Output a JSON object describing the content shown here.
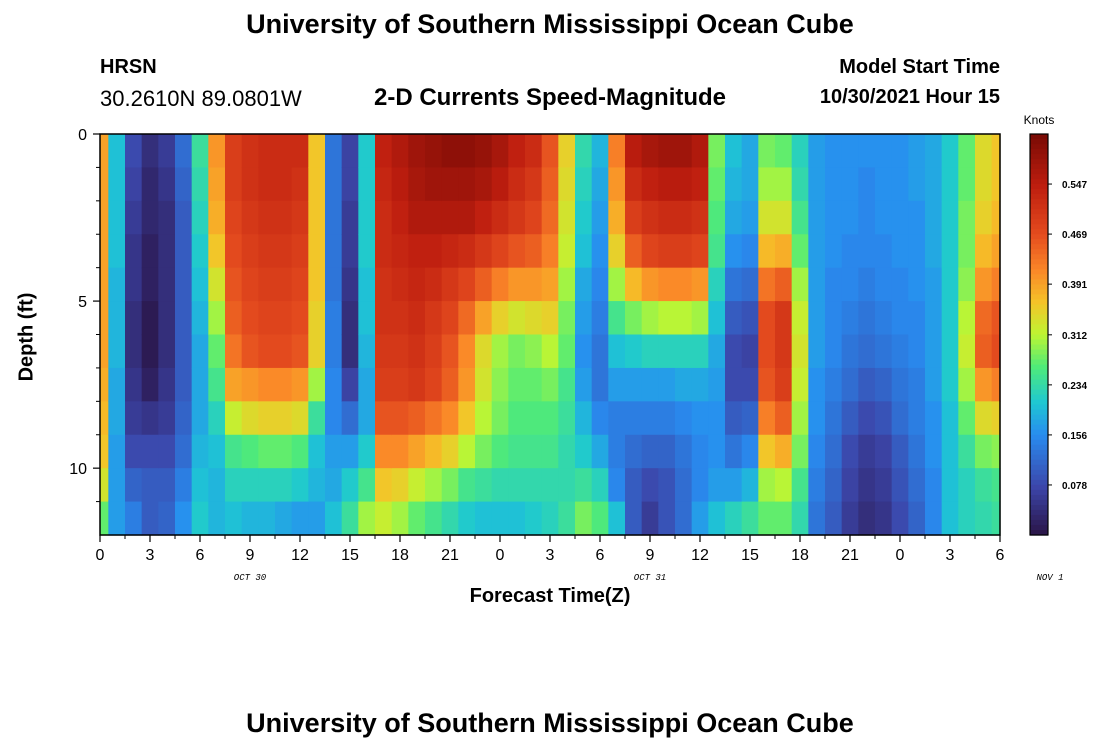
{
  "header": {
    "title": "University of Southern Mississippi Ocean Cube",
    "station": "HRSN",
    "coordinates": "30.2610N  89.0801W",
    "subtitle": "2-D Currents Speed-Magnitude",
    "model_start_label": "Model Start Time",
    "model_start_value": "10/30/2021 Hour 15"
  },
  "footer": {
    "title": "University of Southern Mississippi Ocean Cube"
  },
  "chart_data": {
    "type": "heatmap",
    "xlabel": "Forecast Time(Z)",
    "ylabel": "Depth (ft)",
    "colorbar_label": "Knots",
    "x_tick_labels": [
      "0",
      "3",
      "6",
      "9",
      "12",
      "15",
      "18",
      "21",
      "0",
      "3",
      "6",
      "9",
      "12",
      "15",
      "18",
      "21",
      "0",
      "3",
      "6"
    ],
    "date_labels": [
      {
        "text": "OCT 30",
        "hour": 9
      },
      {
        "text": "OCT 31",
        "hour": 33
      },
      {
        "text": "NOV 1",
        "hour": 57
      }
    ],
    "xlim_hours": [
      0,
      54
    ],
    "y_tick_labels": [
      "0",
      "5",
      "10"
    ],
    "ylim_ft": [
      0,
      12
    ],
    "colorbar_ticks": [
      0.078,
      0.156,
      0.234,
      0.312,
      0.391,
      0.469,
      0.547
    ],
    "colorbar_range": [
      0.0,
      0.625
    ],
    "depth_levels_ft": [
      0.5,
      1.5,
      2.5,
      3.5,
      4.5,
      5.5,
      6.5,
      7.5,
      8.5,
      9.5,
      10.5,
      11.5
    ],
    "speed_knots_by_hour": [
      {
        "hour": 0,
        "profile": [
          0.39,
          0.39,
          0.39,
          0.39,
          0.39,
          0.39,
          0.39,
          0.38,
          0.37,
          0.36,
          0.33,
          0.27
        ]
      },
      {
        "hour": 1,
        "profile": [
          0.2,
          0.2,
          0.2,
          0.2,
          0.19,
          0.19,
          0.19,
          0.18,
          0.18,
          0.17,
          0.17,
          0.17
        ]
      },
      {
        "hour": 2,
        "profile": [
          0.08,
          0.07,
          0.06,
          0.05,
          0.05,
          0.04,
          0.04,
          0.05,
          0.06,
          0.08,
          0.11,
          0.14
        ]
      },
      {
        "hour": 3,
        "profile": [
          0.04,
          0.03,
          0.03,
          0.02,
          0.02,
          0.01,
          0.01,
          0.02,
          0.05,
          0.08,
          0.1,
          0.1
        ]
      },
      {
        "hour": 4,
        "profile": [
          0.06,
          0.05,
          0.04,
          0.04,
          0.04,
          0.04,
          0.04,
          0.05,
          0.06,
          0.08,
          0.1,
          0.11
        ]
      },
      {
        "hour": 5,
        "profile": [
          0.12,
          0.11,
          0.1,
          0.1,
          0.1,
          0.1,
          0.1,
          0.1,
          0.11,
          0.12,
          0.14,
          0.16
        ]
      },
      {
        "hour": 6,
        "profile": [
          0.24,
          0.23,
          0.22,
          0.21,
          0.2,
          0.19,
          0.18,
          0.18,
          0.18,
          0.19,
          0.2,
          0.21
        ]
      },
      {
        "hour": 7,
        "profile": [
          0.4,
          0.39,
          0.38,
          0.36,
          0.33,
          0.3,
          0.27,
          0.25,
          0.22,
          0.2,
          0.19,
          0.19
        ]
      },
      {
        "hour": 8,
        "profile": [
          0.49,
          0.49,
          0.48,
          0.47,
          0.46,
          0.45,
          0.43,
          0.39,
          0.32,
          0.25,
          0.22,
          0.2
        ]
      },
      {
        "hour": 9,
        "profile": [
          0.51,
          0.51,
          0.5,
          0.49,
          0.48,
          0.47,
          0.46,
          0.4,
          0.34,
          0.26,
          0.22,
          0.19
        ]
      },
      {
        "hour": 10,
        "profile": [
          0.52,
          0.52,
          0.51,
          0.5,
          0.49,
          0.48,
          0.47,
          0.41,
          0.35,
          0.27,
          0.22,
          0.19
        ]
      },
      {
        "hour": 11,
        "profile": [
          0.52,
          0.52,
          0.51,
          0.5,
          0.49,
          0.48,
          0.47,
          0.41,
          0.35,
          0.27,
          0.22,
          0.18
        ]
      },
      {
        "hour": 12,
        "profile": [
          0.52,
          0.51,
          0.5,
          0.49,
          0.48,
          0.47,
          0.46,
          0.4,
          0.34,
          0.26,
          0.21,
          0.17
        ]
      },
      {
        "hour": 13,
        "profile": [
          0.36,
          0.36,
          0.36,
          0.36,
          0.36,
          0.35,
          0.35,
          0.3,
          0.24,
          0.2,
          0.19,
          0.17
        ]
      },
      {
        "hour": 14,
        "profile": [
          0.13,
          0.13,
          0.13,
          0.13,
          0.13,
          0.14,
          0.14,
          0.15,
          0.15,
          0.17,
          0.18,
          0.2
        ]
      },
      {
        "hour": 15,
        "profile": [
          0.07,
          0.07,
          0.06,
          0.06,
          0.05,
          0.04,
          0.04,
          0.07,
          0.12,
          0.17,
          0.21,
          0.24
        ]
      },
      {
        "hour": 16,
        "profile": [
          0.21,
          0.21,
          0.21,
          0.21,
          0.2,
          0.2,
          0.19,
          0.18,
          0.18,
          0.21,
          0.25,
          0.3
        ]
      },
      {
        "hour": 17,
        "profile": [
          0.54,
          0.53,
          0.52,
          0.52,
          0.51,
          0.51,
          0.5,
          0.49,
          0.46,
          0.41,
          0.36,
          0.32
        ]
      },
      {
        "hour": 18,
        "profile": [
          0.56,
          0.55,
          0.54,
          0.53,
          0.52,
          0.51,
          0.5,
          0.49,
          0.46,
          0.41,
          0.35,
          0.3
        ]
      },
      {
        "hour": 19,
        "profile": [
          0.58,
          0.57,
          0.56,
          0.54,
          0.53,
          0.52,
          0.51,
          0.5,
          0.45,
          0.39,
          0.32,
          0.27
        ]
      },
      {
        "hour": 20,
        "profile": [
          0.59,
          0.58,
          0.56,
          0.54,
          0.52,
          0.5,
          0.49,
          0.48,
          0.43,
          0.37,
          0.3,
          0.25
        ]
      },
      {
        "hour": 21,
        "profile": [
          0.6,
          0.58,
          0.56,
          0.53,
          0.5,
          0.48,
          0.46,
          0.45,
          0.41,
          0.35,
          0.28,
          0.23
        ]
      },
      {
        "hour": 22,
        "profile": [
          0.6,
          0.58,
          0.56,
          0.52,
          0.48,
          0.44,
          0.41,
          0.4,
          0.36,
          0.31,
          0.25,
          0.21
        ]
      },
      {
        "hour": 23,
        "profile": [
          0.59,
          0.57,
          0.54,
          0.5,
          0.45,
          0.39,
          0.34,
          0.33,
          0.31,
          0.28,
          0.24,
          0.2
        ]
      },
      {
        "hour": 24,
        "profile": [
          0.57,
          0.55,
          0.52,
          0.48,
          0.42,
          0.35,
          0.3,
          0.29,
          0.28,
          0.26,
          0.23,
          0.2
        ]
      },
      {
        "hour": 25,
        "profile": [
          0.54,
          0.52,
          0.5,
          0.46,
          0.4,
          0.33,
          0.28,
          0.27,
          0.26,
          0.25,
          0.23,
          0.2
        ]
      },
      {
        "hour": 26,
        "profile": [
          0.52,
          0.5,
          0.48,
          0.45,
          0.4,
          0.34,
          0.29,
          0.27,
          0.26,
          0.25,
          0.23,
          0.21
        ]
      },
      {
        "hour": 27,
        "profile": [
          0.46,
          0.45,
          0.44,
          0.42,
          0.39,
          0.35,
          0.31,
          0.28,
          0.26,
          0.25,
          0.23,
          0.22
        ]
      },
      {
        "hour": 28,
        "profile": [
          0.35,
          0.34,
          0.33,
          0.32,
          0.3,
          0.28,
          0.27,
          0.25,
          0.24,
          0.23,
          0.23,
          0.24
        ]
      },
      {
        "hour": 29,
        "profile": [
          0.23,
          0.22,
          0.21,
          0.2,
          0.18,
          0.17,
          0.16,
          0.17,
          0.19,
          0.21,
          0.24,
          0.28
        ]
      },
      {
        "hour": 30,
        "profile": [
          0.19,
          0.18,
          0.17,
          0.16,
          0.15,
          0.14,
          0.13,
          0.13,
          0.15,
          0.18,
          0.22,
          0.26
        ]
      },
      {
        "hour": 31,
        "profile": [
          0.42,
          0.4,
          0.38,
          0.35,
          0.3,
          0.25,
          0.2,
          0.17,
          0.14,
          0.14,
          0.15,
          0.2
        ]
      },
      {
        "hour": 32,
        "profile": [
          0.55,
          0.52,
          0.49,
          0.45,
          0.37,
          0.28,
          0.21,
          0.17,
          0.14,
          0.12,
          0.1,
          0.1
        ]
      },
      {
        "hour": 33,
        "profile": [
          0.57,
          0.54,
          0.51,
          0.48,
          0.4,
          0.3,
          0.22,
          0.17,
          0.14,
          0.11,
          0.08,
          0.06
        ]
      },
      {
        "hour": 34,
        "profile": [
          0.58,
          0.55,
          0.52,
          0.49,
          0.41,
          0.31,
          0.22,
          0.17,
          0.14,
          0.11,
          0.09,
          0.09
        ]
      },
      {
        "hour": 35,
        "profile": [
          0.58,
          0.55,
          0.52,
          0.49,
          0.41,
          0.31,
          0.22,
          0.18,
          0.15,
          0.13,
          0.12,
          0.12
        ]
      },
      {
        "hour": 36,
        "profile": [
          0.56,
          0.54,
          0.51,
          0.48,
          0.4,
          0.3,
          0.22,
          0.18,
          0.16,
          0.15,
          0.15,
          0.17
        ]
      },
      {
        "hour": 37,
        "profile": [
          0.28,
          0.27,
          0.26,
          0.25,
          0.22,
          0.2,
          0.18,
          0.17,
          0.16,
          0.16,
          0.17,
          0.2
        ]
      },
      {
        "hour": 38,
        "profile": [
          0.2,
          0.19,
          0.18,
          0.16,
          0.13,
          0.1,
          0.08,
          0.08,
          0.1,
          0.13,
          0.17,
          0.22
        ]
      },
      {
        "hour": 39,
        "profile": [
          0.18,
          0.18,
          0.17,
          0.15,
          0.12,
          0.09,
          0.07,
          0.08,
          0.11,
          0.15,
          0.19,
          0.24
        ]
      },
      {
        "hour": 40,
        "profile": [
          0.28,
          0.3,
          0.33,
          0.37,
          0.43,
          0.47,
          0.47,
          0.46,
          0.42,
          0.36,
          0.3,
          0.27
        ]
      },
      {
        "hour": 41,
        "profile": [
          0.27,
          0.3,
          0.33,
          0.38,
          0.45,
          0.5,
          0.5,
          0.49,
          0.45,
          0.38,
          0.31,
          0.27
        ]
      },
      {
        "hour": 42,
        "profile": [
          0.22,
          0.23,
          0.25,
          0.27,
          0.3,
          0.32,
          0.33,
          0.32,
          0.3,
          0.28,
          0.25,
          0.23
        ]
      },
      {
        "hour": 43,
        "profile": [
          0.17,
          0.17,
          0.17,
          0.17,
          0.17,
          0.17,
          0.17,
          0.16,
          0.16,
          0.15,
          0.14,
          0.13
        ]
      },
      {
        "hour": 44,
        "profile": [
          0.16,
          0.16,
          0.16,
          0.16,
          0.15,
          0.15,
          0.15,
          0.14,
          0.13,
          0.12,
          0.11,
          0.1
        ]
      },
      {
        "hour": 45,
        "profile": [
          0.16,
          0.16,
          0.16,
          0.15,
          0.15,
          0.14,
          0.13,
          0.12,
          0.1,
          0.08,
          0.07,
          0.06
        ]
      },
      {
        "hour": 46,
        "profile": [
          0.16,
          0.15,
          0.15,
          0.15,
          0.14,
          0.13,
          0.12,
          0.1,
          0.08,
          0.06,
          0.05,
          0.04
        ]
      },
      {
        "hour": 47,
        "profile": [
          0.16,
          0.16,
          0.16,
          0.15,
          0.15,
          0.14,
          0.13,
          0.11,
          0.09,
          0.07,
          0.06,
          0.05
        ]
      },
      {
        "hour": 48,
        "profile": [
          0.16,
          0.16,
          0.16,
          0.16,
          0.15,
          0.15,
          0.14,
          0.13,
          0.12,
          0.1,
          0.09,
          0.08
        ]
      },
      {
        "hour": 49,
        "profile": [
          0.17,
          0.17,
          0.16,
          0.16,
          0.16,
          0.15,
          0.15,
          0.14,
          0.14,
          0.13,
          0.12,
          0.11
        ]
      },
      {
        "hour": 50,
        "profile": [
          0.18,
          0.18,
          0.18,
          0.18,
          0.17,
          0.17,
          0.17,
          0.17,
          0.16,
          0.16,
          0.15,
          0.15
        ]
      },
      {
        "hour": 51,
        "profile": [
          0.21,
          0.21,
          0.21,
          0.21,
          0.21,
          0.21,
          0.21,
          0.21,
          0.2,
          0.2,
          0.2,
          0.2
        ]
      },
      {
        "hour": 52,
        "profile": [
          0.27,
          0.27,
          0.28,
          0.28,
          0.29,
          0.31,
          0.32,
          0.3,
          0.27,
          0.24,
          0.22,
          0.22
        ]
      },
      {
        "hour": 53,
        "profile": [
          0.34,
          0.34,
          0.35,
          0.37,
          0.4,
          0.44,
          0.45,
          0.4,
          0.34,
          0.28,
          0.24,
          0.23
        ]
      },
      {
        "hour": 54,
        "profile": [
          0.36,
          0.36,
          0.37,
          0.39,
          0.42,
          0.46,
          0.47,
          0.42,
          0.35,
          0.29,
          0.25,
          0.24
        ]
      }
    ]
  }
}
